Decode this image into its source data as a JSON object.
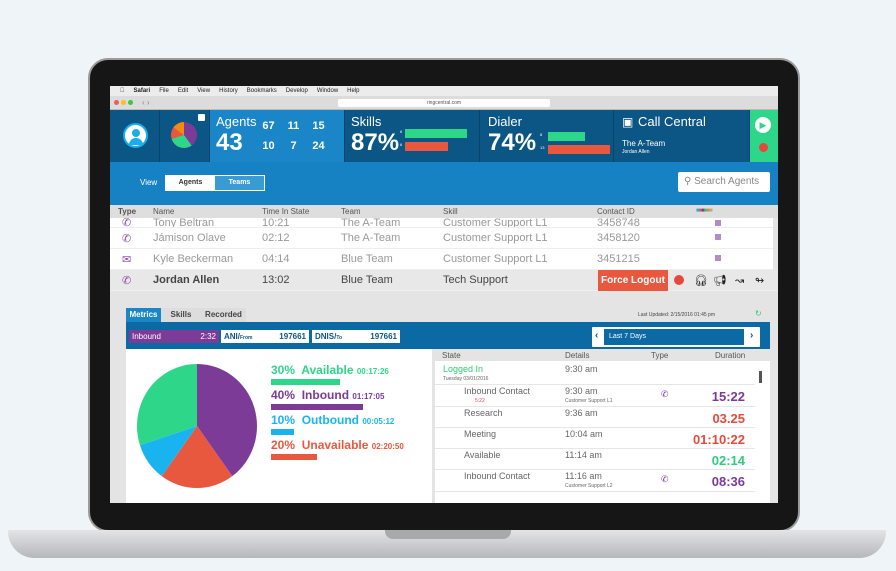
{
  "browser": {
    "menu": [
      "Safari",
      "File",
      "Edit",
      "View",
      "History",
      "Bookmarks",
      "Develop",
      "Window",
      "Help"
    ],
    "url": "ringcentral.com"
  },
  "header": {
    "agents": {
      "label": "Agents",
      "count": "43",
      "tiles": [
        {
          "v": "67",
          "c": "#19aee8"
        },
        {
          "v": "11",
          "c": "#e8583e"
        },
        {
          "v": "15",
          "c": "#7b3b96"
        },
        {
          "v": "10",
          "c": "#2ecc83"
        },
        {
          "v": "7",
          "c": "#f58a12"
        },
        {
          "v": "24",
          "c": "#a5a5a5"
        }
      ]
    },
    "skills": {
      "label": "Skills",
      "percent": "87%",
      "bars": [
        {
          "n": "6",
          "frac": 1.0,
          "c": "#2ed68a"
        },
        {
          "n": "6",
          "frac": 0.7,
          "c": "#e8583e"
        }
      ]
    },
    "dialer": {
      "label": "Dialer",
      "percent": "74%",
      "bars": [
        {
          "n": "8",
          "frac": 0.6,
          "c": "#2ed68a"
        },
        {
          "n": "13",
          "frac": 1.0,
          "c": "#e8583e"
        }
      ]
    },
    "call_central": {
      "label": "Call Central",
      "team": "The A-Team",
      "agent": "Jordan Allen"
    }
  },
  "view": {
    "label": "View",
    "options": [
      "Agents",
      "Teams"
    ],
    "selected": "Agents",
    "search_placeholder": "Search Agents"
  },
  "table": {
    "columns": [
      "Type",
      "Name",
      "Time In State",
      "Team",
      "Skill",
      "Contact ID"
    ],
    "rows": [
      {
        "type": "phone",
        "name": "Tony Beltran",
        "time": "10:21",
        "team": "The A-Team",
        "skill": "Customer Support L1",
        "contact": "3458748"
      },
      {
        "type": "phone",
        "name": "Jámison Olave",
        "time": "02:12",
        "team": "The A-Team",
        "skill": "Customer Support L1",
        "contact": "3458120"
      },
      {
        "type": "email",
        "name": "Kyle Beckerman",
        "time": "04:14",
        "team": "Blue Team",
        "skill": "Customer Support L1",
        "contact": "3451215"
      },
      {
        "type": "phone",
        "name": "Jordan Allen",
        "time": "13:02",
        "team": "Blue Team",
        "skill": "Tech Support",
        "contact": ""
      }
    ],
    "force_logout": "Force Logout"
  },
  "detail": {
    "tabs": [
      "Metrics",
      "Skills",
      "Recorded"
    ],
    "active_tab": "Metrics",
    "last_updated": "Last Updated: 2/15/2016 01:45 pm",
    "inbound": {
      "label": "Inbound",
      "value": "2:32"
    },
    "ani": {
      "label": "ANI/",
      "sub": "From",
      "value": "197661"
    },
    "dnis": {
      "label": "DNIS/",
      "sub": "To",
      "value": "197661"
    },
    "range": "Last 7 Days",
    "legend": [
      {
        "pct": "30%",
        "label": "Available",
        "time": "00:17:26",
        "value": 30,
        "color": "#2ed68a"
      },
      {
        "pct": "40%",
        "label": "Inbound",
        "time": "01:17:05",
        "value": 40,
        "color": "#7b3b96"
      },
      {
        "pct": "10%",
        "label": "Outbound",
        "time": "00:05:12",
        "value": 10,
        "color": "#19b4f0"
      },
      {
        "pct": "20%",
        "label": "Unavailable",
        "time": "02:20:50",
        "value": 20,
        "color": "#e8583e"
      }
    ],
    "state_columns": [
      "State",
      "Details",
      "Type",
      "Duration"
    ],
    "states": [
      {
        "state": "Logged In",
        "sub": "Tuesday 03/01/2016",
        "time": "9:30 am",
        "detail": "",
        "duration": "",
        "color": "#2ecc71",
        "phone": false
      },
      {
        "state": "Inbound Contact",
        "sub": "5:22",
        "time": "9:30 am",
        "detail": "Customer Support L1",
        "duration": "15:22",
        "color": "#7b3b96",
        "phone": true
      },
      {
        "state": "Research",
        "sub": "",
        "time": "9:36 am",
        "detail": "",
        "duration": "03.25",
        "color": "#e8483a",
        "phone": false
      },
      {
        "state": "Meeting",
        "sub": "",
        "time": "10:04 am",
        "detail": "",
        "duration": "01:10:22",
        "color": "#e8483a",
        "phone": false
      },
      {
        "state": "Available",
        "sub": "",
        "time": "11:14 am",
        "detail": "",
        "duration": "02:14",
        "color": "#2ecc83",
        "phone": false
      },
      {
        "state": "Inbound Contact",
        "sub": "",
        "time": "11:16 am",
        "detail": "Customer Support L2",
        "duration": "08:36",
        "color": "#7b3b96",
        "phone": true
      }
    ]
  }
}
